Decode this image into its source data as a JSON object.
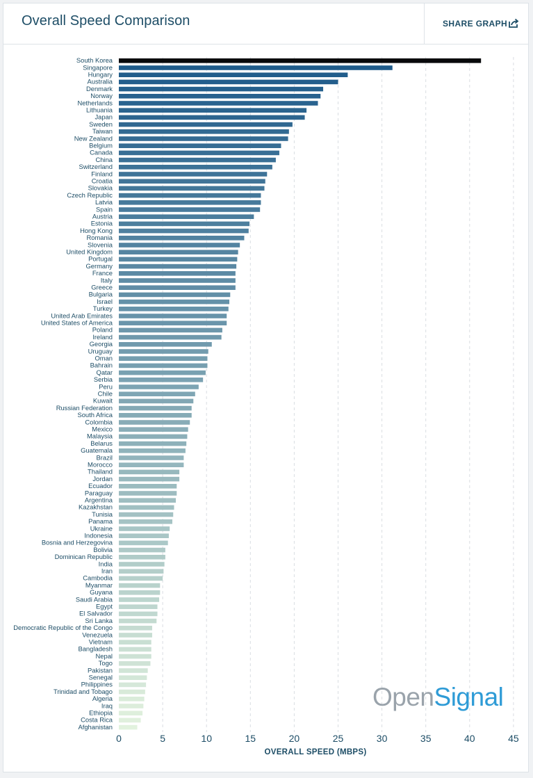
{
  "header": {
    "title": "Overall Speed Comparison",
    "share_label": "SHARE GRAPH"
  },
  "logo": {
    "part1": "Open",
    "part2": "Signal"
  },
  "colors": {
    "text": "#1d4d66",
    "bar_top": "#08090b",
    "bar_dark": "#1f5b8a",
    "bar_light": "#e2f2de",
    "logo_grey": "#9aa3ab",
    "logo_blue": "#2e9bd6"
  },
  "chart_data": {
    "type": "bar",
    "orientation": "horizontal",
    "xlabel": "OVERALL SPEED (MBPS)",
    "ylabel": "",
    "xlim": [
      0,
      45
    ],
    "xticks": [
      0,
      5,
      10,
      15,
      20,
      25,
      30,
      35,
      40,
      45
    ],
    "grid": "vertical dashed",
    "categories": [
      "South Korea",
      "Singapore",
      "Hungary",
      "Australia",
      "Denmark",
      "Norway",
      "Netherlands",
      "Lithuania",
      "Japan",
      "Sweden",
      "Taiwan",
      "New Zealand",
      "Belgium",
      "Canada",
      "China",
      "Switzerland",
      "Finland",
      "Croatia",
      "Slovakia",
      "Czech Republic",
      "Latvia",
      "Spain",
      "Austria",
      "Estonia",
      "Hong Kong",
      "Romania",
      "Slovenia",
      "United Kingdom",
      "Portugal",
      "Germany",
      "France",
      "Italy",
      "Greece",
      "Bulgaria",
      "Israel",
      "Turkey",
      "United Arab Emirates",
      "United States of America",
      "Poland",
      "Ireland",
      "Georgia",
      "Uruguay",
      "Oman",
      "Bahrain",
      "Qatar",
      "Serbia",
      "Peru",
      "Chile",
      "Kuwait",
      "Russian Federation",
      "South Africa",
      "Colombia",
      "Mexico",
      "Malaysia",
      "Belarus",
      "Guatemala",
      "Brazil",
      "Morocco",
      "Thailand",
      "Jordan",
      "Ecuador",
      "Paraguay",
      "Argentina",
      "Kazakhstan",
      "Tunisia",
      "Panama",
      "Ukraine",
      "Indonesia",
      "Bosnia and Herzegovina",
      "Bolivia",
      "Dominican Republic",
      "India",
      "Iran",
      "Cambodia",
      "Myanmar",
      "Guyana",
      "Saudi Arabia",
      "Egypt",
      "El Salvador",
      "Sri Lanka",
      "Democratic Republic of the Congo",
      "Venezuela",
      "Vietnam",
      "Bangladesh",
      "Nepal",
      "Togo",
      "Pakistan",
      "Senegal",
      "Philippines",
      "Trinidad and Tobago",
      "Algeria",
      "Iraq",
      "Ethiopia",
      "Costa Rica",
      "Afghanistan"
    ],
    "values": [
      41.3,
      31.2,
      26.1,
      25.0,
      23.3,
      23.0,
      22.7,
      21.4,
      21.2,
      19.8,
      19.4,
      19.3,
      18.5,
      18.3,
      17.9,
      17.5,
      16.9,
      16.7,
      16.6,
      16.2,
      16.2,
      16.1,
      15.4,
      14.9,
      14.8,
      14.3,
      13.8,
      13.6,
      13.5,
      13.4,
      13.3,
      13.3,
      13.3,
      12.7,
      12.6,
      12.5,
      12.3,
      12.3,
      11.8,
      11.7,
      10.6,
      10.2,
      10.1,
      10.1,
      9.9,
      9.6,
      9.1,
      8.7,
      8.5,
      8.3,
      8.3,
      8.1,
      7.9,
      7.8,
      7.7,
      7.6,
      7.4,
      7.4,
      6.9,
      6.9,
      6.6,
      6.6,
      6.5,
      6.3,
      6.2,
      6.1,
      5.8,
      5.7,
      5.6,
      5.3,
      5.3,
      5.2,
      5.1,
      5.0,
      4.7,
      4.7,
      4.6,
      4.4,
      4.4,
      4.3,
      3.8,
      3.8,
      3.7,
      3.7,
      3.7,
      3.6,
      3.3,
      3.2,
      3.1,
      3.0,
      2.9,
      2.8,
      2.7,
      2.5,
      2.1
    ]
  }
}
